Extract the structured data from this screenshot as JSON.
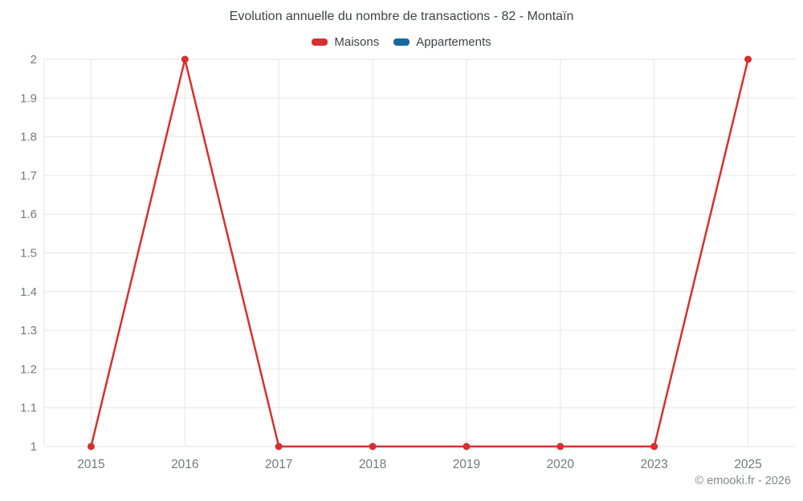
{
  "header": {
    "title": "Evolution annuelle du nombre de transactions - 82 - Montaïn"
  },
  "legend": {
    "items": [
      {
        "label": "Maisons",
        "color": "#d7302f"
      },
      {
        "label": "Appartements",
        "color": "#1769a0"
      }
    ]
  },
  "chart_data": {
    "type": "line",
    "title": "Evolution annuelle du nombre de transactions - 82 - Montaïn",
    "categories": [
      "2015",
      "2016",
      "2017",
      "2018",
      "2019",
      "2020",
      "2023",
      "2025"
    ],
    "series": [
      {
        "name": "Maisons",
        "color": "#d7302f",
        "values": [
          1,
          2,
          1,
          1,
          1,
          1,
          1,
          2
        ]
      },
      {
        "name": "Appartements",
        "color": "#1769a0",
        "values": []
      }
    ],
    "xlabel": "",
    "ylabel": "",
    "ylim": [
      1,
      2
    ],
    "ytick_step": 0.1,
    "ytick_labels": [
      "1",
      "1.1",
      "1.2",
      "1.3",
      "1.4",
      "1.5",
      "1.6",
      "1.7",
      "1.8",
      "1.9",
      "2"
    ],
    "grid": true,
    "legend_position": "top",
    "grid_color": "#e6e6e6",
    "axis_label_color": "#75787c"
  },
  "footer": {
    "credit": "© emooki.fr - 2026"
  }
}
